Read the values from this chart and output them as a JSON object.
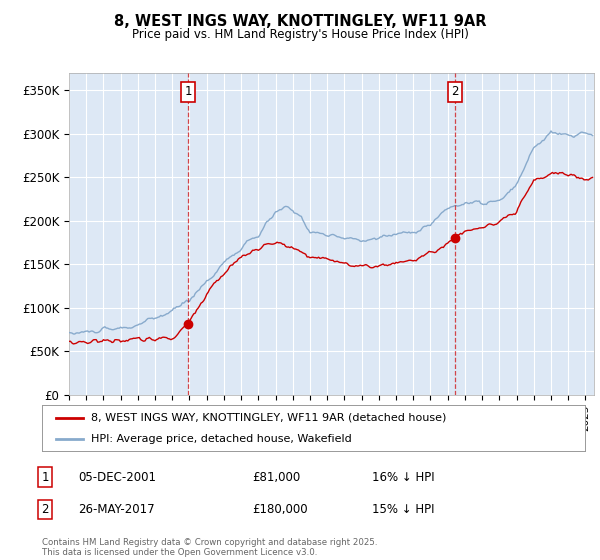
{
  "title": "8, WEST INGS WAY, KNOTTINGLEY, WF11 9AR",
  "subtitle": "Price paid vs. HM Land Registry's House Price Index (HPI)",
  "ylabel_ticks": [
    "£0",
    "£50K",
    "£100K",
    "£150K",
    "£200K",
    "£250K",
    "£300K",
    "£350K"
  ],
  "ytick_vals": [
    0,
    50000,
    100000,
    150000,
    200000,
    250000,
    300000,
    350000
  ],
  "ylim": [
    0,
    370000
  ],
  "xlim_start": 1995,
  "xlim_end": 2025.5,
  "background_color": "#dde8f5",
  "red_line_color": "#cc0000",
  "blue_line_color": "#88aacc",
  "grid_color": "#ffffff",
  "sale1_x": 2001.92,
  "sale1_y": 81000,
  "sale2_x": 2017.42,
  "sale2_y": 180000,
  "legend_entries": [
    "8, WEST INGS WAY, KNOTTINGLEY, WF11 9AR (detached house)",
    "HPI: Average price, detached house, Wakefield"
  ],
  "annotation1_date": "05-DEC-2001",
  "annotation1_price": "£81,000",
  "annotation1_hpi": "16% ↓ HPI",
  "annotation2_date": "26-MAY-2017",
  "annotation2_price": "£180,000",
  "annotation2_hpi": "15% ↓ HPI",
  "footer": "Contains HM Land Registry data © Crown copyright and database right 2025.\nThis data is licensed under the Open Government Licence v3.0."
}
